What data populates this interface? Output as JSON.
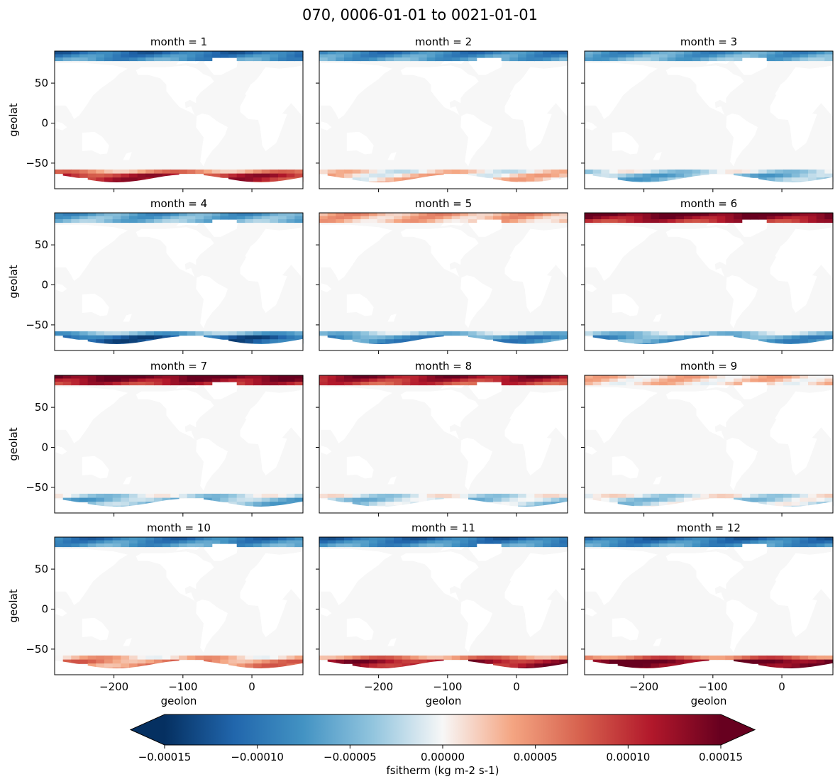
{
  "chart_data": {
    "type": "heatmap",
    "title": "070, 0006-01-01 to 0021-01-01",
    "variable": "fsitherm",
    "colorbar_label": "fsitherm (kg m-2 s-1)",
    "colormap": "RdBu_r",
    "vmin": -0.00015,
    "vmax": 0.00015,
    "colorbar_ticks": [
      -0.00015,
      -0.0001,
      -5e-05,
      0.0,
      5e-05,
      0.0001,
      0.00015
    ],
    "colorbar_tick_labels": [
      "−0.00015",
      "−0.00010",
      "−0.00005",
      "0.00000",
      "0.00005",
      "0.00010",
      "0.00015"
    ],
    "colorbar_extend": "both",
    "xlabel": "geolon",
    "ylabel": "geolat",
    "xlim": [
      -286,
      74
    ],
    "ylim": [
      -82,
      90
    ],
    "xticks": [
      -200,
      -100,
      0
    ],
    "xtick_labels": [
      "−200",
      "−100",
      "0"
    ],
    "yticks": [
      -50,
      0,
      50
    ],
    "ytick_labels": [
      "−50",
      "0",
      "50"
    ],
    "facet": "month",
    "panels": [
      {
        "month": 1,
        "title": "month = 1",
        "arctic": -0.7,
        "antarctic": 0.7
      },
      {
        "month": 2,
        "title": "month = 2",
        "arctic": -0.6,
        "antarctic": 0.1
      },
      {
        "month": 3,
        "title": "month = 3",
        "arctic": -0.5,
        "antarctic": -0.3
      },
      {
        "month": 4,
        "title": "month = 4",
        "arctic": -0.45,
        "antarctic": -0.75
      },
      {
        "month": 5,
        "title": "month = 5",
        "arctic": 0.25,
        "antarctic": -0.5
      },
      {
        "month": 6,
        "title": "month = 6",
        "arctic": 1.0,
        "antarctic": -0.45
      },
      {
        "month": 7,
        "title": "month = 7",
        "arctic": 1.0,
        "antarctic": -0.3
      },
      {
        "month": 8,
        "title": "month = 8",
        "arctic": 0.85,
        "antarctic": -0.2
      },
      {
        "month": 9,
        "title": "month = 9",
        "arctic": 0.15,
        "antarctic": -0.15
      },
      {
        "month": 10,
        "title": "month = 10",
        "arctic": -0.65,
        "antarctic": 0.35
      },
      {
        "month": 11,
        "title": "month = 11",
        "arctic": -0.7,
        "antarctic": 0.8
      },
      {
        "month": 12,
        "title": "month = 12",
        "arctic": -0.7,
        "antarctic": 1.0
      }
    ]
  }
}
